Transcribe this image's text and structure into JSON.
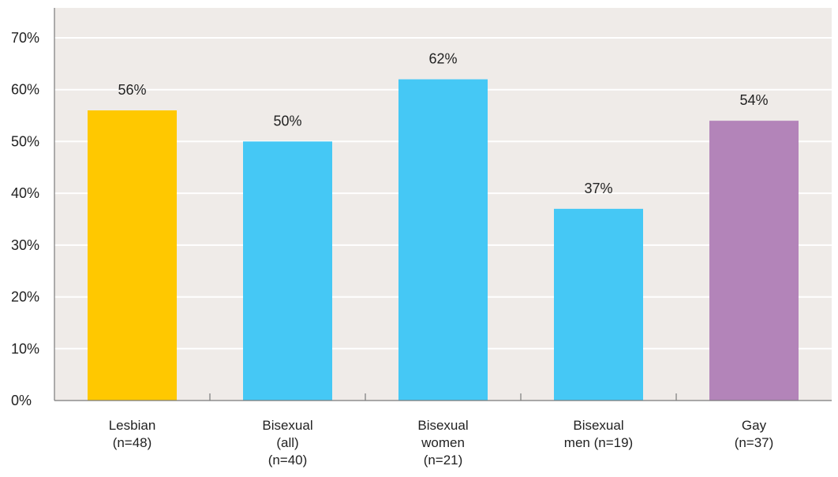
{
  "chart_data": {
    "type": "bar",
    "categories": [
      [
        "Lesbian",
        "(n=48)"
      ],
      [
        "Bisexual",
        "(all)",
        "(n=40)"
      ],
      [
        "Bisexual",
        "women",
        "(n=21)"
      ],
      [
        "Bisexual",
        "men (n=19)"
      ],
      [
        "Gay",
        "(n=37)"
      ]
    ],
    "values": [
      56,
      50,
      62,
      37,
      54
    ],
    "value_labels": [
      "56%",
      "50%",
      "62%",
      "37%",
      "54%"
    ],
    "bar_colors": [
      "#FFC800",
      "#45C8F5",
      "#45C8F5",
      "#45C8F5",
      "#B384B9"
    ],
    "ylim": [
      0,
      70
    ],
    "yticks": [
      0,
      10,
      20,
      30,
      40,
      50,
      60,
      70
    ],
    "ytick_labels": [
      "0%",
      "10%",
      "20%",
      "30%",
      "40%",
      "50%",
      "60%",
      "70%"
    ],
    "grid": true,
    "legend": "none",
    "title": "",
    "xlabel": "",
    "ylabel": "",
    "background_color": "#EFEBE8",
    "grid_color": "#FFFFFF",
    "axis_color": "#7A7A7A"
  }
}
